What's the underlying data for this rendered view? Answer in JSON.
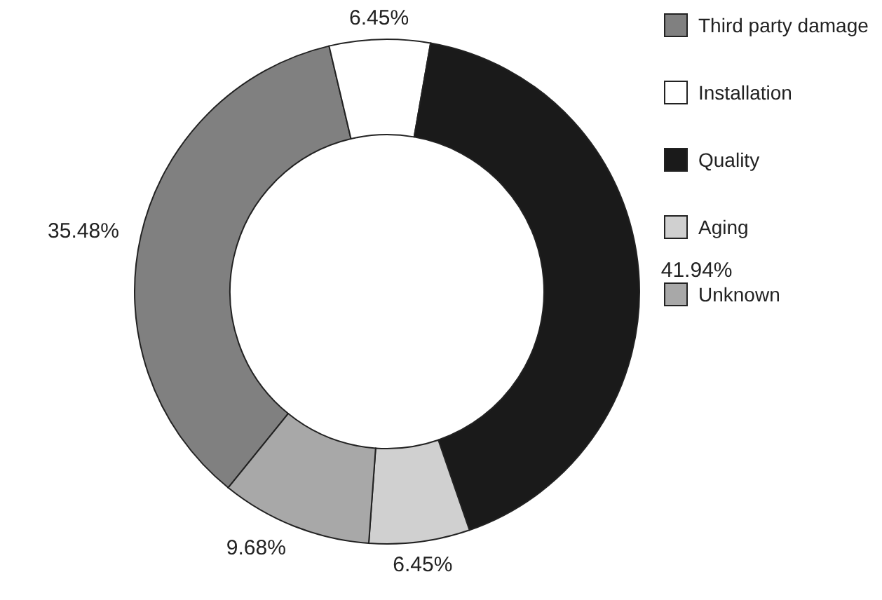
{
  "chart_data": {
    "type": "donut",
    "categories": [
      "Third party damage",
      "Installation",
      "Quality",
      "Aging",
      "Unknown"
    ],
    "values": [
      35.48,
      6.45,
      41.94,
      6.45,
      9.68
    ],
    "colors": [
      "#808080",
      "#ffffff",
      "#1a1a1a",
      "#d0d0d0",
      "#a8a8a8"
    ],
    "value_labels": [
      "35.48%",
      "6.45%",
      "41.94%",
      "6.45%",
      "9.68%"
    ],
    "legend": "right"
  }
}
